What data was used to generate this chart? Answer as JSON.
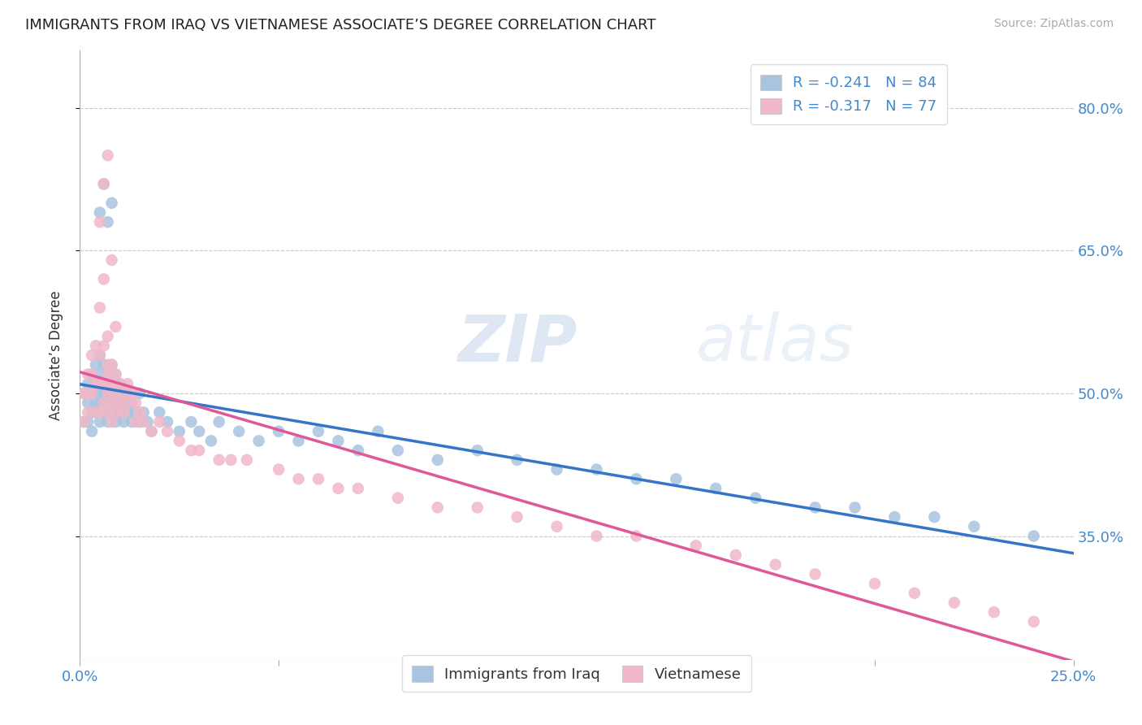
{
  "title": "IMMIGRANTS FROM IRAQ VS VIETNAMESE ASSOCIATE’S DEGREE CORRELATION CHART",
  "source": "Source: ZipAtlas.com",
  "ylabel": "Associate’s Degree",
  "xlim": [
    0.0,
    0.25
  ],
  "ylim": [
    0.22,
    0.86
  ],
  "xtick_positions": [
    0.0,
    0.25
  ],
  "xticklabels": [
    "0.0%",
    "25.0%"
  ],
  "ytick_positions": [
    0.35,
    0.5,
    0.65,
    0.8
  ],
  "yticklabels": [
    "35.0%",
    "50.0%",
    "65.0%",
    "80.0%"
  ],
  "legend_label_iraq": "R = -0.241   N = 84",
  "legend_label_viet": "R = -0.317   N = 77",
  "bottom_legend": [
    "Immigrants from Iraq",
    "Vietnamese"
  ],
  "iraq_color": "#a8c4e0",
  "viet_color": "#f0b8c8",
  "iraq_line_color": "#3575c8",
  "viet_line_color": "#e05898",
  "watermark_zip": "ZIP",
  "watermark_atlas": "atlas",
  "iraq_x": [
    0.001,
    0.001,
    0.002,
    0.002,
    0.002,
    0.003,
    0.003,
    0.003,
    0.003,
    0.004,
    0.004,
    0.004,
    0.004,
    0.005,
    0.005,
    0.005,
    0.005,
    0.005,
    0.006,
    0.006,
    0.006,
    0.006,
    0.007,
    0.007,
    0.007,
    0.007,
    0.008,
    0.008,
    0.008,
    0.008,
    0.009,
    0.009,
    0.009,
    0.009,
    0.01,
    0.01,
    0.01,
    0.011,
    0.011,
    0.012,
    0.012,
    0.013,
    0.013,
    0.014,
    0.015,
    0.015,
    0.016,
    0.017,
    0.018,
    0.02,
    0.022,
    0.025,
    0.028,
    0.03,
    0.033,
    0.035,
    0.04,
    0.045,
    0.05,
    0.055,
    0.06,
    0.065,
    0.07,
    0.075,
    0.08,
    0.09,
    0.1,
    0.11,
    0.12,
    0.13,
    0.14,
    0.15,
    0.16,
    0.17,
    0.185,
    0.195,
    0.205,
    0.215,
    0.225,
    0.24,
    0.005,
    0.006,
    0.007,
    0.008
  ],
  "iraq_y": [
    0.47,
    0.5,
    0.51,
    0.47,
    0.49,
    0.52,
    0.48,
    0.5,
    0.46,
    0.53,
    0.49,
    0.51,
    0.48,
    0.54,
    0.5,
    0.47,
    0.52,
    0.49,
    0.53,
    0.5,
    0.48,
    0.51,
    0.52,
    0.49,
    0.47,
    0.5,
    0.53,
    0.5,
    0.48,
    0.51,
    0.52,
    0.49,
    0.47,
    0.5,
    0.51,
    0.48,
    0.5,
    0.49,
    0.47,
    0.5,
    0.48,
    0.49,
    0.47,
    0.48,
    0.47,
    0.5,
    0.48,
    0.47,
    0.46,
    0.48,
    0.47,
    0.46,
    0.47,
    0.46,
    0.45,
    0.47,
    0.46,
    0.45,
    0.46,
    0.45,
    0.46,
    0.45,
    0.44,
    0.46,
    0.44,
    0.43,
    0.44,
    0.43,
    0.42,
    0.42,
    0.41,
    0.41,
    0.4,
    0.39,
    0.38,
    0.38,
    0.37,
    0.37,
    0.36,
    0.35,
    0.69,
    0.72,
    0.68,
    0.7
  ],
  "viet_x": [
    0.001,
    0.001,
    0.002,
    0.002,
    0.002,
    0.003,
    0.003,
    0.003,
    0.004,
    0.004,
    0.004,
    0.005,
    0.005,
    0.005,
    0.006,
    0.006,
    0.006,
    0.007,
    0.007,
    0.007,
    0.007,
    0.008,
    0.008,
    0.008,
    0.009,
    0.009,
    0.009,
    0.01,
    0.01,
    0.011,
    0.011,
    0.012,
    0.012,
    0.013,
    0.014,
    0.014,
    0.015,
    0.016,
    0.018,
    0.02,
    0.022,
    0.025,
    0.028,
    0.03,
    0.035,
    0.038,
    0.042,
    0.05,
    0.055,
    0.06,
    0.065,
    0.07,
    0.08,
    0.09,
    0.1,
    0.11,
    0.12,
    0.13,
    0.14,
    0.155,
    0.165,
    0.175,
    0.185,
    0.2,
    0.21,
    0.22,
    0.23,
    0.24,
    0.005,
    0.006,
    0.007,
    0.008,
    0.005,
    0.006,
    0.007,
    0.008,
    0.009
  ],
  "viet_y": [
    0.5,
    0.47,
    0.52,
    0.48,
    0.5,
    0.54,
    0.5,
    0.52,
    0.55,
    0.51,
    0.48,
    0.54,
    0.51,
    0.48,
    0.55,
    0.51,
    0.49,
    0.52,
    0.5,
    0.48,
    0.53,
    0.51,
    0.49,
    0.47,
    0.52,
    0.5,
    0.48,
    0.51,
    0.49,
    0.5,
    0.48,
    0.51,
    0.49,
    0.5,
    0.49,
    0.47,
    0.48,
    0.47,
    0.46,
    0.47,
    0.46,
    0.45,
    0.44,
    0.44,
    0.43,
    0.43,
    0.43,
    0.42,
    0.41,
    0.41,
    0.4,
    0.4,
    0.39,
    0.38,
    0.38,
    0.37,
    0.36,
    0.35,
    0.35,
    0.34,
    0.33,
    0.32,
    0.31,
    0.3,
    0.29,
    0.28,
    0.27,
    0.26,
    0.68,
    0.72,
    0.75,
    0.64,
    0.59,
    0.62,
    0.56,
    0.53,
    0.57
  ]
}
